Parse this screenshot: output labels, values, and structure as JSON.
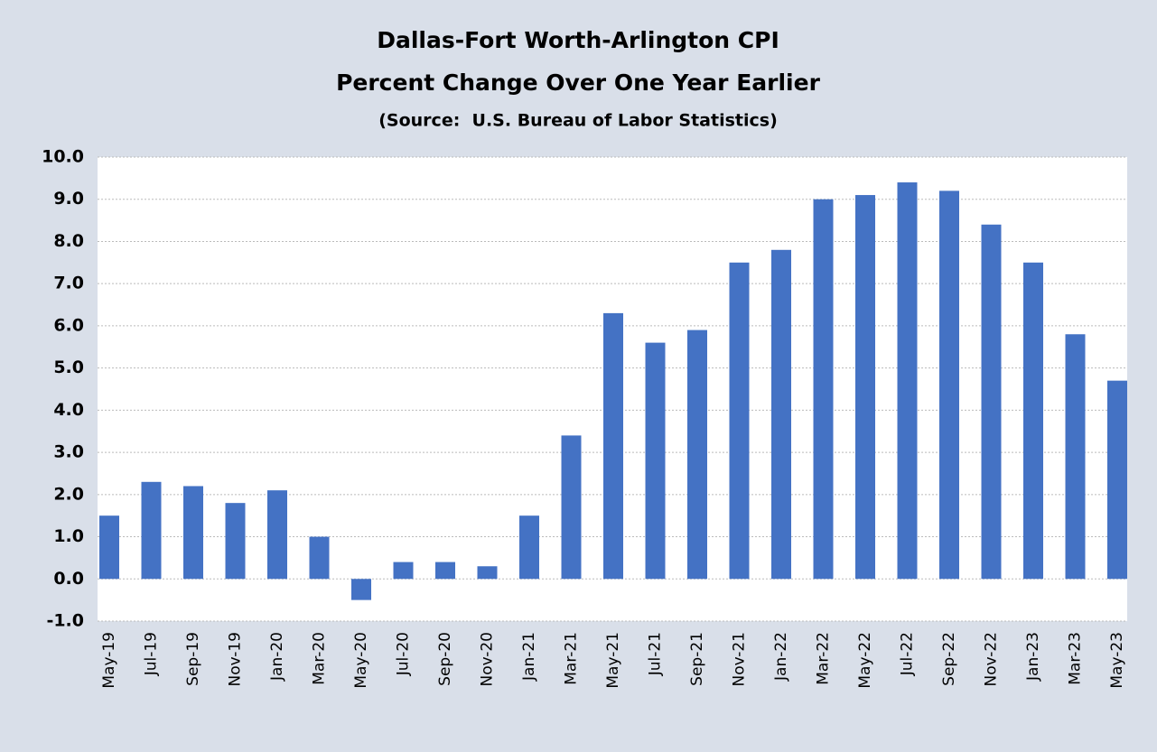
{
  "chart_data": {
    "type": "bar",
    "title": "Dallas-Fort Worth-Arlington CPI",
    "subtitle": "Percent Change Over One Year Earlier",
    "source": "(Source:  U.S. Bureau of Labor Statistics)",
    "categories": [
      "May-19",
      "Jul-19",
      "Sep-19",
      "Nov-19",
      "Jan-20",
      "Mar-20",
      "May-20",
      "Jul-20",
      "Sep-20",
      "Nov-20",
      "Jan-21",
      "Mar-21",
      "May-21",
      "Jul-21",
      "Sep-21",
      "Nov-21",
      "Jan-22",
      "Mar-22",
      "May-22",
      "Jul-22",
      "Sep-22",
      "Nov-22",
      "Jan-23",
      "Mar-23",
      "May-23"
    ],
    "values": [
      1.5,
      2.3,
      2.2,
      1.8,
      2.1,
      1.0,
      -0.5,
      0.4,
      0.4,
      0.3,
      1.5,
      3.4,
      6.3,
      5.6,
      5.9,
      7.5,
      7.8,
      9.0,
      9.1,
      9.4,
      9.2,
      8.4,
      7.5,
      5.8,
      4.7
    ],
    "color": "#4472c4",
    "ylim": [
      -1,
      10
    ],
    "yticks": [
      {
        "value": -1,
        "label": "-1.0"
      },
      {
        "value": 0,
        "label": "0.0"
      },
      {
        "value": 1,
        "label": "1.0"
      },
      {
        "value": 2,
        "label": "2.0"
      },
      {
        "value": 3,
        "label": "3.0"
      },
      {
        "value": 4,
        "label": "4.0"
      },
      {
        "value": 5,
        "label": "5.0"
      },
      {
        "value": 6,
        "label": "6.0"
      },
      {
        "value": 7,
        "label": "7.0"
      },
      {
        "value": 8,
        "label": "8.0"
      },
      {
        "value": 9,
        "label": "9.0"
      },
      {
        "value": 10,
        "label": "10.0"
      }
    ],
    "grid": true
  }
}
